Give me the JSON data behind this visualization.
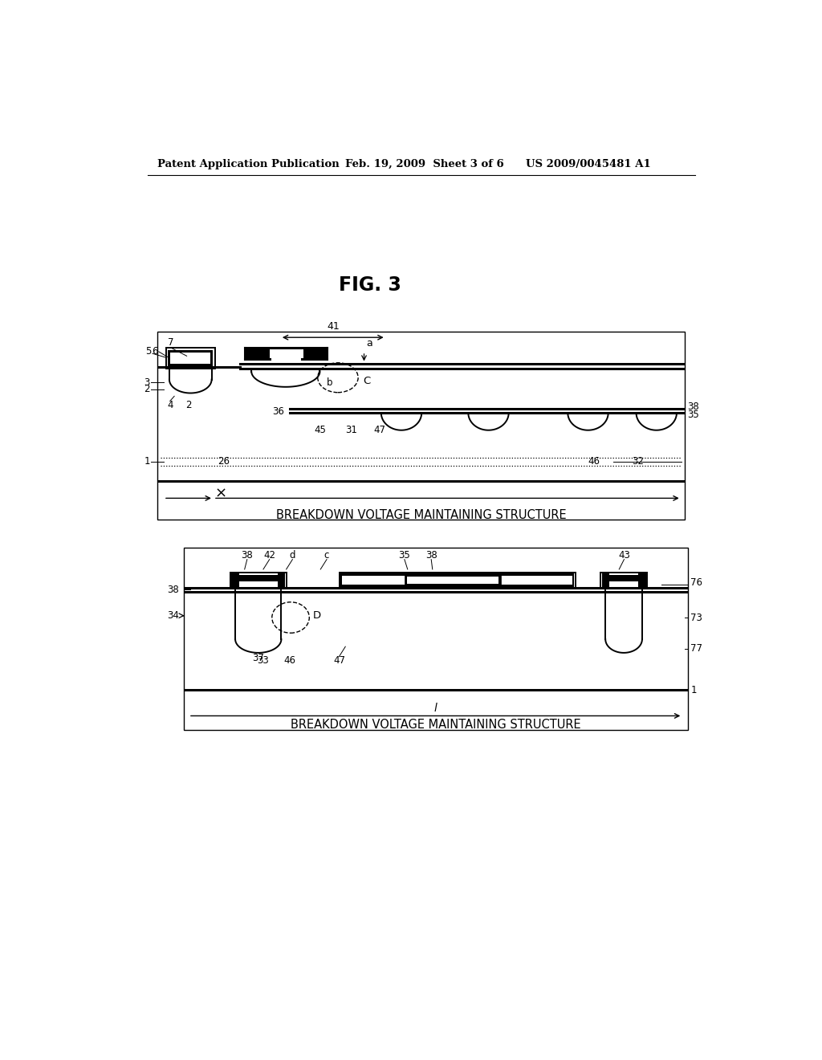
{
  "bg_color": "#ffffff",
  "header_left": "Patent Application Publication",
  "header_mid": "Feb. 19, 2009  Sheet 3 of 6",
  "header_right": "US 2009/0045481 A1",
  "fig_label": "FIG. 3",
  "diagram1_label": "BREAKDOWN VOLTAGE MAINTAINING STRUCTURE",
  "diagram2_label": "BREAKDOWN VOLTAGE MAINTAINING STRUCTURE"
}
